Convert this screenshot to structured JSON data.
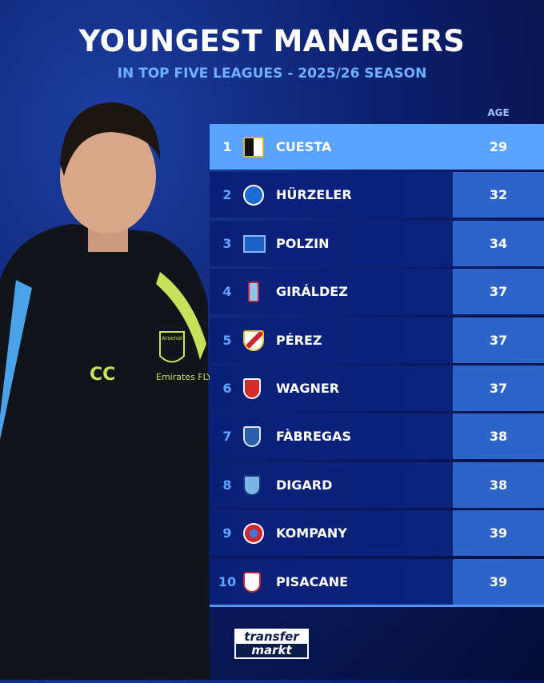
{
  "header": {
    "title": "YOUNGEST MANAGERS",
    "subtitle": "IN TOP FIVE LEAGUES - 2025/26 SEASON"
  },
  "table": {
    "age_header": "AGE",
    "rows": [
      {
        "rank": "1",
        "name": "CUESTA",
        "age": "29",
        "crest": "parma-crest"
      },
      {
        "rank": "2",
        "name": "HÜRZELER",
        "age": "32",
        "crest": "brighton-crest"
      },
      {
        "rank": "3",
        "name": "POLZIN",
        "age": "34",
        "crest": "hamburg-crest"
      },
      {
        "rank": "4",
        "name": "GIRÁLDEZ",
        "age": "37",
        "crest": "celta-crest"
      },
      {
        "rank": "5",
        "name": "PÉREZ",
        "age": "37",
        "crest": "rayo-crest"
      },
      {
        "rank": "6",
        "name": "WAGNER",
        "age": "37",
        "crest": "augsburg-crest"
      },
      {
        "rank": "7",
        "name": "FÀBREGAS",
        "age": "38",
        "crest": "como-crest"
      },
      {
        "rank": "8",
        "name": "DIGARD",
        "age": "38",
        "crest": "le-havre-crest"
      },
      {
        "rank": "9",
        "name": "KOMPANY",
        "age": "39",
        "crest": "bayern-crest"
      },
      {
        "rank": "10",
        "name": "PISACANE",
        "age": "39",
        "crest": "cagliari-crest"
      }
    ]
  },
  "photo": {
    "jacket_initials": "CC",
    "sponsor": "Emirates FLY BETTER",
    "club": "Arsenal"
  },
  "logo": {
    "line1": "transfer",
    "line2": "markt"
  },
  "colors": {
    "highlight": "#5aa3ff",
    "row": "#0a1f78",
    "age_cell": "#2e64c9",
    "accent": "#6fb0ff"
  }
}
